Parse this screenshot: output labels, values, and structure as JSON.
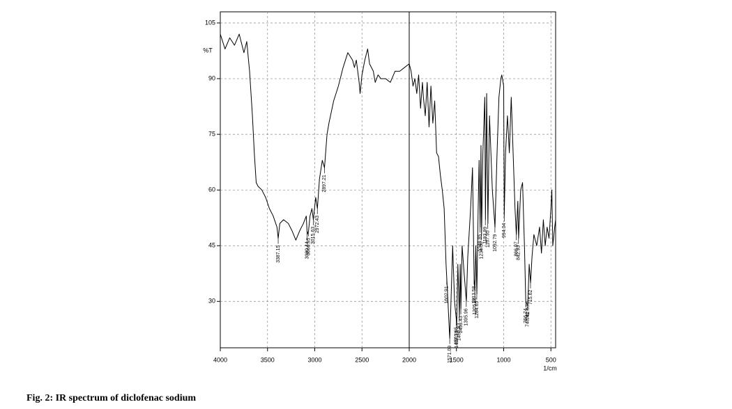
{
  "chart_data": {
    "type": "line",
    "caption": "Fig. 2: IR spectrum of diclofenac sodium",
    "y_label": "%T",
    "x_label": "1/cm",
    "xlim": [
      4000,
      450
    ],
    "ylim": [
      17.5,
      108
    ],
    "xticks": [
      4000,
      3500,
      3000,
      2500,
      2000,
      1500,
      1000,
      500
    ],
    "yticks": [
      30,
      45,
      60,
      75,
      90,
      105
    ],
    "grid": true,
    "color": "#000000",
    "x": [
      4000,
      3950,
      3900,
      3850,
      3800,
      3750,
      3720,
      3690,
      3660,
      3640,
      3620,
      3600,
      3560,
      3520,
      3480,
      3440,
      3400,
      3387.15,
      3370,
      3330,
      3280,
      3240,
      3200,
      3160,
      3120,
      3090,
      3080,
      3066,
      3050,
      3030,
      3015,
      2990,
      2972,
      2950,
      2920,
      2897,
      2870,
      2850,
      2800,
      2750,
      2700,
      2650,
      2600,
      2580,
      2560,
      2530,
      2520,
      2500,
      2470,
      2440,
      2420,
      2380,
      2360,
      2330,
      2300,
      2250,
      2200,
      2150,
      2100,
      2050,
      2000,
      1980,
      1960,
      1940,
      1920,
      1900,
      1880,
      1860,
      1850,
      1830,
      1810,
      1790,
      1770,
      1750,
      1730,
      1710,
      1690,
      1670,
      1650,
      1630,
      1610,
      1602,
      1590,
      1571,
      1560,
      1540,
      1520,
      1501,
      1497,
      1485,
      1469,
      1460,
      1453,
      1440,
      1420,
      1395,
      1380,
      1350,
      1330,
      1313,
      1305,
      1295,
      1284,
      1270,
      1260,
      1249,
      1240,
      1234,
      1220,
      1200,
      1193,
      1180,
      1167,
      1150,
      1120,
      1092,
      1070,
      1050,
      1030,
      1020,
      1000,
      994,
      980,
      960,
      940,
      920,
      900,
      880,
      866,
      850,
      842,
      820,
      800,
      780,
      766,
      748,
      742,
      730,
      715,
      700,
      680,
      650,
      620,
      600,
      580,
      560,
      540,
      520,
      500,
      490,
      480,
      460,
      450
    ],
    "values": [
      102,
      98,
      101,
      99,
      102,
      97,
      100,
      92,
      80,
      70,
      62,
      61,
      60,
      58,
      55,
      53,
      50,
      47,
      51,
      52,
      51,
      49,
      46.5,
      49,
      51,
      53,
      48,
      49,
      53,
      55,
      52,
      58,
      55,
      63,
      68,
      66,
      75,
      78,
      84,
      88,
      93,
      97,
      95,
      93,
      95,
      89,
      86,
      91,
      95,
      98,
      94,
      92,
      89,
      91,
      90,
      90,
      89,
      92,
      92,
      93,
      94,
      92,
      88,
      90,
      86,
      91,
      82,
      89,
      85,
      80,
      89,
      77,
      88,
      78,
      84,
      70,
      69,
      64,
      60,
      55,
      40,
      36,
      30,
      20,
      28,
      45,
      30,
      25,
      24,
      40,
      26,
      40,
      28,
      45,
      38,
      30,
      42,
      55,
      66,
      36,
      33,
      45,
      32,
      55,
      68,
      50,
      72,
      48,
      70,
      85,
      52,
      86,
      51,
      80,
      60,
      50,
      70,
      85,
      90,
      91,
      88,
      53,
      70,
      80,
      70,
      85,
      70,
      55,
      48,
      57,
      47,
      60,
      62,
      45,
      30,
      29,
      31,
      40,
      35,
      42,
      48,
      45,
      50,
      43,
      52,
      45,
      50,
      47,
      55,
      60,
      45,
      50,
      52
    ],
    "peaks": {
      "x": [
        3387.15,
        3080.44,
        3066.95,
        3015.63,
        2972.43,
        2897.21,
        1602.91,
        1571.09,
        1501.65,
        1497.79,
        1469.82,
        1453.43,
        1395.96,
        1313.58,
        1305.86,
        1284.65,
        1249.85,
        {
          "value": 1234.5,
          "label": "1234.50"
        },
        1193.99,
        1167.95,
        1092.79,
        994.04,
        866.97,
        842.93,
        766.74,
        748.41,
        742.63,
        715.62
      ],
      "y": [
        47,
        48,
        49,
        52,
        55,
        66,
        36,
        20,
        25,
        24,
        26,
        28,
        30,
        36,
        33,
        32,
        50,
        48,
        52,
        51,
        50,
        53,
        48,
        47,
        30,
        29,
        31,
        35
      ]
    }
  }
}
